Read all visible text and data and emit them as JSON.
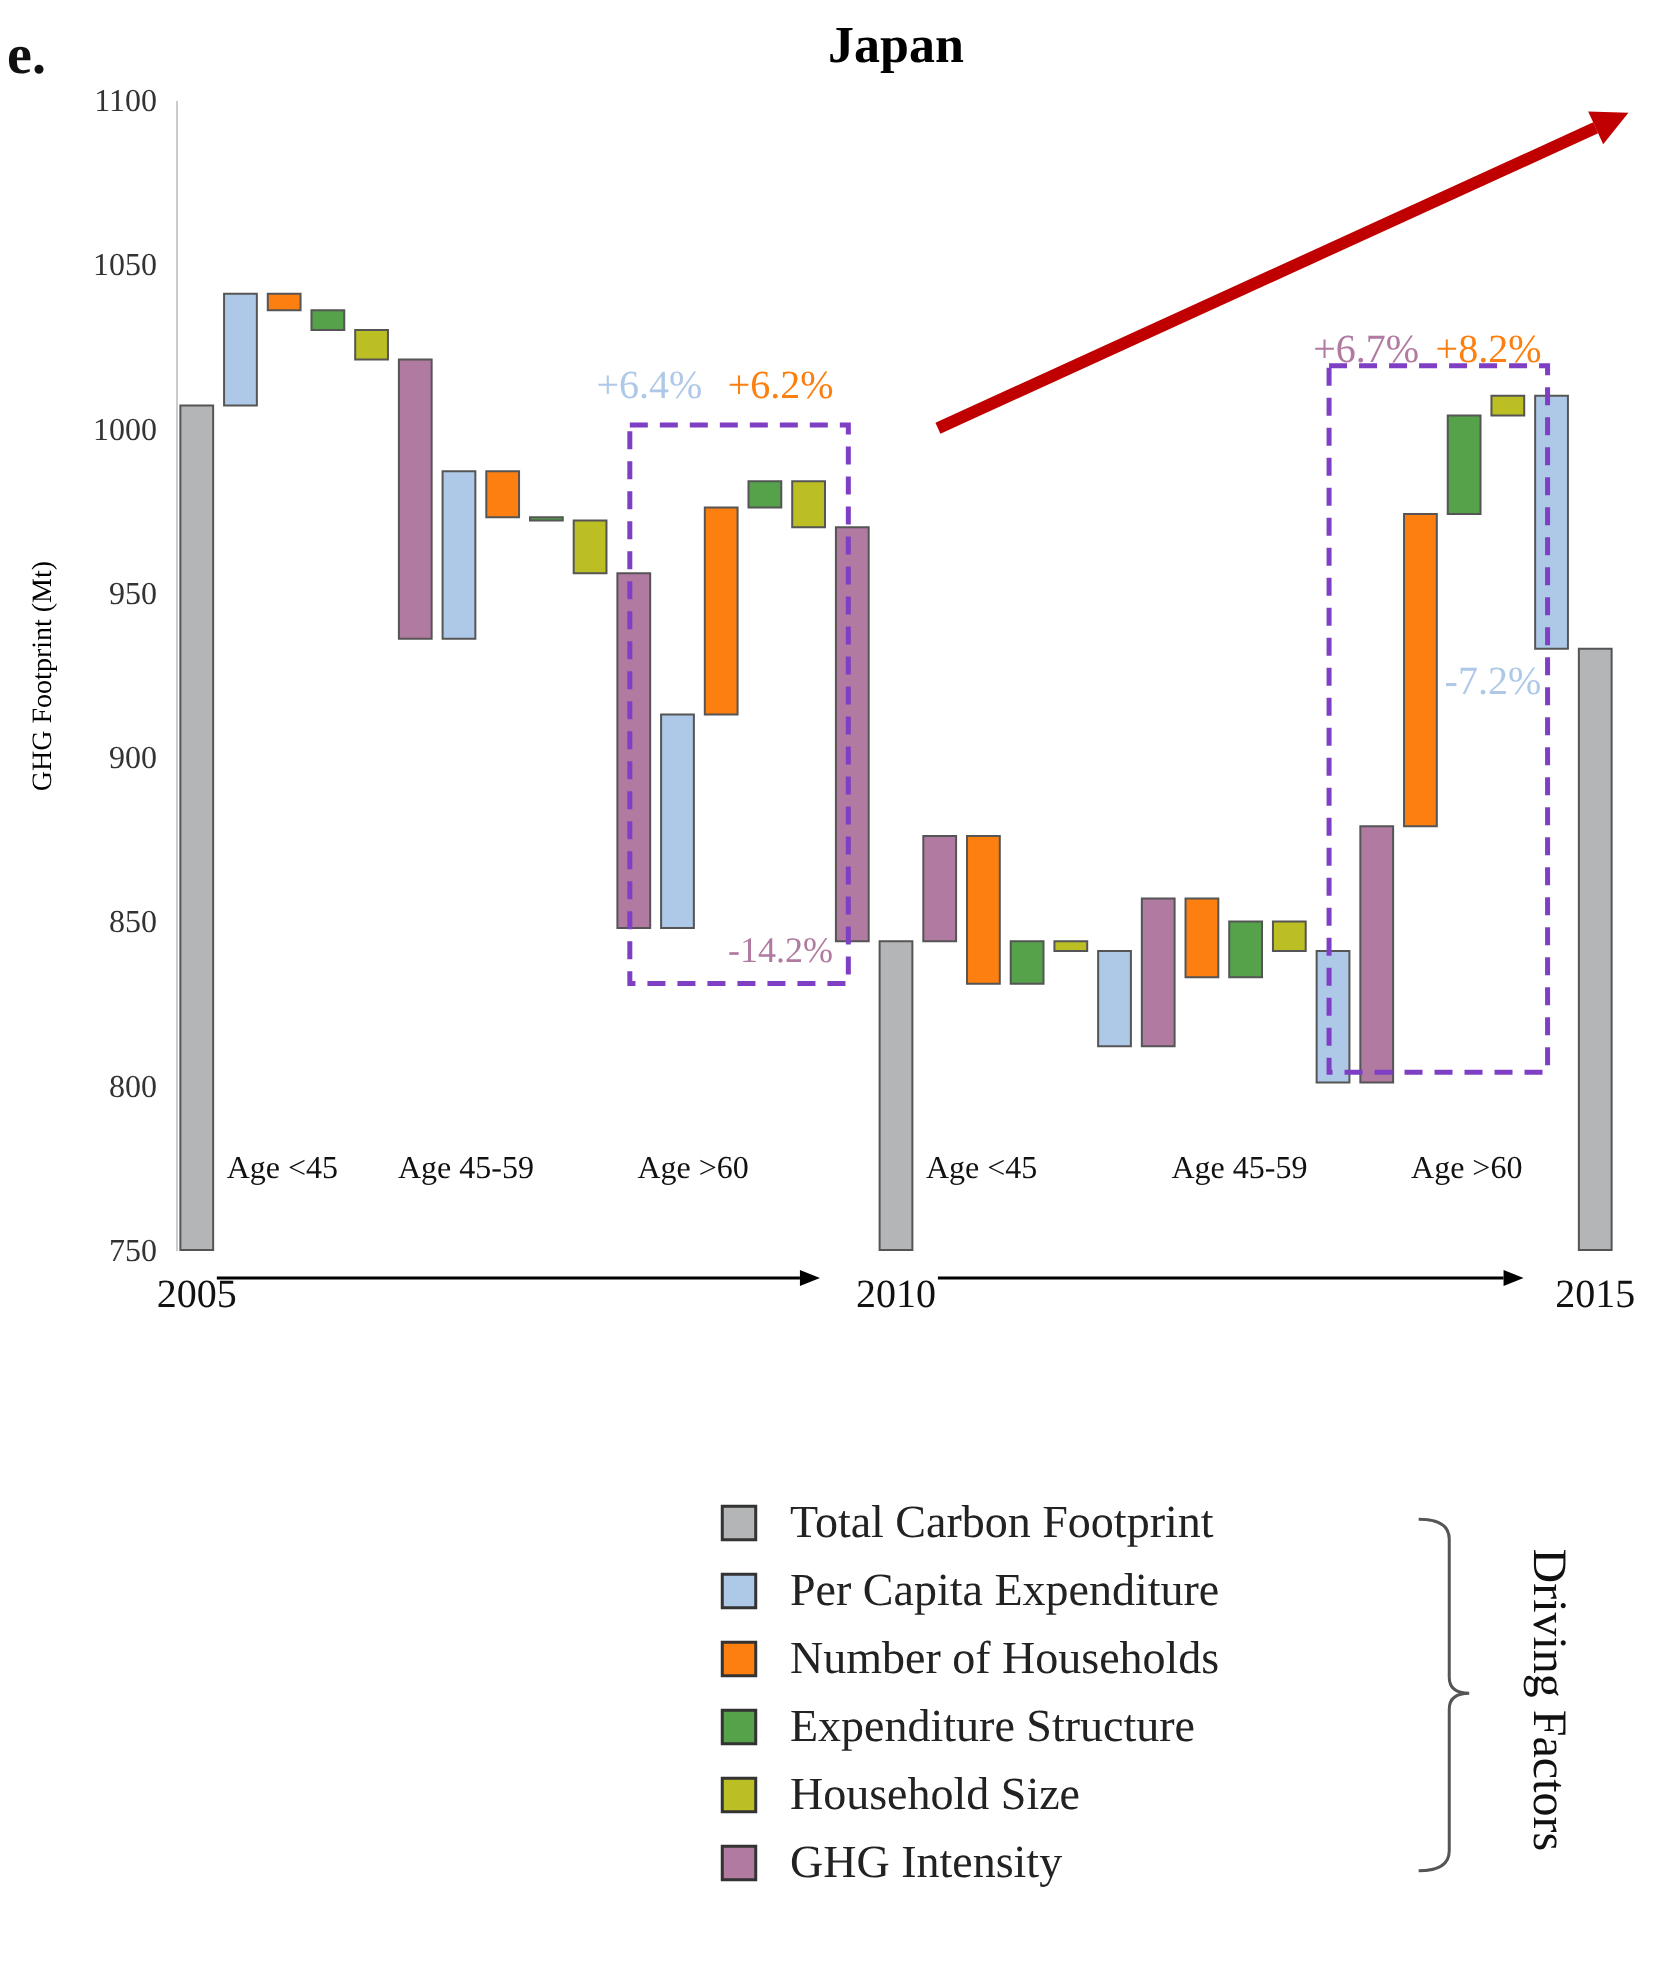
{
  "chart_data": {
    "type": "bar",
    "title": "Japan",
    "ylabel": "GHG Footprint (Mt)",
    "categories": [
      "2005",
      null,
      null,
      null,
      null,
      null,
      null,
      null,
      null,
      null,
      null,
      null,
      null,
      null,
      null,
      null,
      "2010",
      null,
      null,
      null,
      null,
      null,
      null,
      null,
      null,
      null,
      null,
      null,
      null,
      null,
      null,
      null,
      "2015"
    ],
    "series": [
      {
        "name": "Total Carbon Footprint",
        "color": "#b3b5b7",
        "values": [
          1007,
          null,
          null,
          null,
          null,
          null,
          null,
          null,
          null,
          null,
          null,
          null,
          null,
          null,
          null,
          null,
          844,
          null,
          null,
          null,
          null,
          null,
          null,
          null,
          null,
          null,
          null,
          null,
          null,
          null,
          null,
          null,
          933
        ]
      },
      {
        "name": "Per Capita Expenditure",
        "color": "#aec8e8",
        "values": [
          null,
          34,
          null,
          null,
          null,
          null,
          51,
          null,
          null,
          null,
          null,
          65,
          null,
          null,
          null,
          null,
          null,
          null,
          null,
          null,
          null,
          -29,
          null,
          null,
          null,
          null,
          -40,
          null,
          null,
          null,
          null,
          -77,
          null
        ],
        "base": [
          null,
          1007,
          null,
          null,
          null,
          null,
          936,
          null,
          null,
          null,
          null,
          848,
          null,
          null,
          null,
          null,
          null,
          null,
          null,
          null,
          null,
          841,
          null,
          null,
          null,
          null,
          841,
          null,
          null,
          null,
          null,
          1010,
          null
        ]
      },
      {
        "name": "Number of Households",
        "color": "#fd7f0f",
        "values": [
          null,
          null,
          -5,
          null,
          null,
          null,
          null,
          -14,
          null,
          null,
          null,
          null,
          63,
          null,
          null,
          null,
          null,
          null,
          -45,
          null,
          null,
          null,
          null,
          -24,
          null,
          null,
          null,
          null,
          95,
          null,
          null,
          null,
          null
        ],
        "base": [
          null,
          null,
          1041,
          null,
          null,
          null,
          null,
          987,
          null,
          null,
          null,
          null,
          913,
          null,
          null,
          null,
          null,
          null,
          876,
          null,
          null,
          null,
          null,
          857,
          null,
          null,
          null,
          null,
          879,
          null,
          null,
          null,
          null
        ]
      },
      {
        "name": "Expenditure Structure",
        "color": "#55a24a",
        "values": [
          null,
          null,
          null,
          -6,
          null,
          null,
          null,
          null,
          -1,
          null,
          null,
          null,
          null,
          8,
          null,
          null,
          null,
          null,
          null,
          13,
          null,
          null,
          null,
          null,
          17,
          null,
          null,
          null,
          null,
          30,
          null,
          null,
          null
        ],
        "base": [
          null,
          null,
          null,
          1036,
          null,
          null,
          null,
          null,
          973,
          null,
          null,
          null,
          null,
          976,
          null,
          null,
          null,
          null,
          null,
          831,
          null,
          null,
          null,
          null,
          833,
          null,
          null,
          null,
          null,
          974,
          null,
          null,
          null
        ]
      },
      {
        "name": "Household Size",
        "color": "#bcbf24",
        "values": [
          null,
          null,
          null,
          null,
          -9,
          null,
          null,
          null,
          null,
          -16,
          null,
          null,
          null,
          null,
          -14,
          null,
          null,
          null,
          null,
          null,
          -3,
          null,
          null,
          null,
          null,
          -9,
          null,
          null,
          null,
          null,
          6,
          null,
          null
        ],
        "base": [
          null,
          null,
          null,
          null,
          1030,
          null,
          null,
          null,
          null,
          972,
          null,
          null,
          null,
          null,
          984,
          null,
          null,
          null,
          null,
          null,
          844,
          null,
          null,
          null,
          null,
          850,
          null,
          null,
          null,
          null,
          1004,
          null,
          null
        ]
      },
      {
        "name": "GHG Intensity",
        "color": "#b07aa1",
        "values": [
          null,
          null,
          null,
          null,
          null,
          -85,
          null,
          null,
          null,
          null,
          -108,
          null,
          null,
          null,
          null,
          -126,
          null,
          32,
          null,
          null,
          null,
          null,
          45,
          null,
          null,
          null,
          null,
          78,
          null,
          null,
          null,
          null,
          null
        ],
        "base": [
          null,
          null,
          null,
          null,
          null,
          1021,
          null,
          null,
          null,
          null,
          956,
          null,
          null,
          null,
          null,
          970,
          null,
          844,
          null,
          null,
          null,
          null,
          812,
          null,
          null,
          null,
          null,
          801,
          null,
          null,
          null,
          null,
          null
        ]
      }
    ],
    "ylim": [
      750,
      1100
    ],
    "yticks": [
      750,
      800,
      850,
      900,
      950,
      1000,
      1050,
      1100
    ],
    "legend": "bottom",
    "annotations": [
      "e.",
      "+6.4%",
      "+6.2%",
      "-14.2%",
      "+6.7%",
      "+8.2%",
      "-7.2%",
      "Age <45",
      "Age 45-59",
      "Age >60",
      "Age <45",
      "Age 45-59",
      "Age >60",
      "Driving Factors"
    ]
  }
}
